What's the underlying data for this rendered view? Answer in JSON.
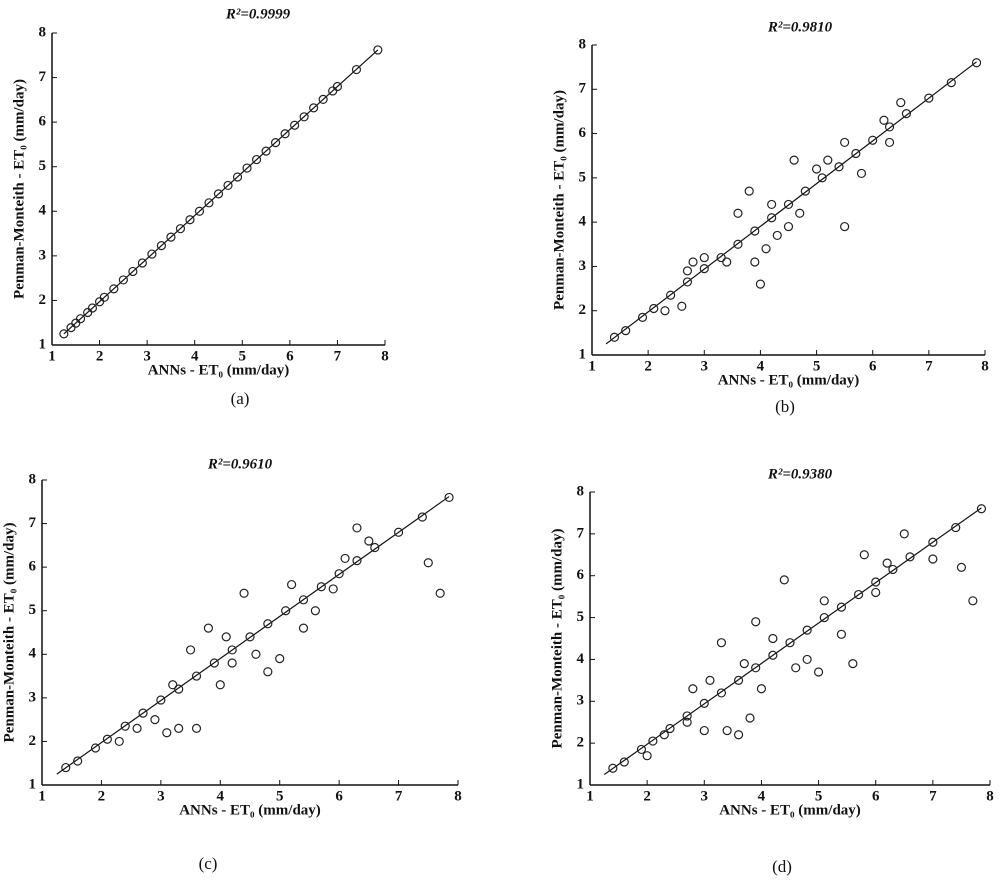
{
  "chart_data": [
    {
      "type": "scatter",
      "title": "R²=0.9999",
      "xlabel": "ANNs - ET₀ (mm/day)",
      "ylabel": "Penman-Monteith - ET₀ (mm/day)",
      "panel_label": "(a)",
      "x": [
        1.25,
        1.4,
        1.5,
        1.6,
        1.75,
        1.85,
        2.0,
        2.1,
        2.3,
        2.5,
        2.7,
        2.9,
        3.1,
        3.3,
        3.5,
        3.7,
        3.9,
        4.1,
        4.3,
        4.5,
        4.7,
        4.9,
        5.1,
        5.3,
        5.5,
        5.7,
        5.9,
        6.1,
        6.3,
        6.5,
        6.7,
        6.9,
        7.0,
        7.4,
        7.85
      ],
      "values": [
        1.25,
        1.39,
        1.49,
        1.59,
        1.73,
        1.83,
        1.97,
        2.07,
        2.26,
        2.46,
        2.65,
        2.84,
        3.04,
        3.23,
        3.42,
        3.61,
        3.81,
        4.0,
        4.19,
        4.39,
        4.58,
        4.77,
        4.97,
        5.16,
        5.35,
        5.54,
        5.74,
        5.93,
        6.12,
        6.32,
        6.51,
        6.7,
        6.8,
        7.18,
        7.62
      ],
      "fit_line": {
        "x": [
          1.25,
          7.85
        ],
        "values": [
          1.25,
          7.62
        ]
      },
      "xlim": [
        1,
        8
      ],
      "ylim": [
        1,
        8
      ],
      "xticks": [
        1,
        2,
        3,
        4,
        5,
        6,
        7,
        8
      ],
      "yticks": [
        1,
        2,
        3,
        4,
        5,
        6,
        7,
        8
      ],
      "color": "#222"
    },
    {
      "type": "scatter",
      "title": "R²=0.9810",
      "xlabel": "ANNs - ET₀ (mm/day)",
      "ylabel": "Penman-Monteith - ET₀ (mm/day)",
      "panel_label": "(b)",
      "x": [
        1.4,
        1.6,
        1.9,
        2.1,
        2.4,
        2.7,
        3.0,
        3.3,
        3.6,
        3.9,
        4.2,
        4.5,
        4.8,
        5.1,
        5.4,
        5.7,
        6.0,
        6.3,
        6.6,
        7.0,
        7.4,
        7.85,
        2.3,
        2.6,
        2.7,
        2.8,
        3.0,
        3.6,
        3.8,
        3.9,
        4.0,
        4.2,
        4.3,
        4.6,
        4.5,
        4.7,
        5.0,
        5.2,
        5.5,
        5.5,
        6.2,
        6.3,
        6.5,
        4.1,
        3.4,
        5.8
      ],
      "values": [
        1.4,
        1.55,
        1.85,
        2.05,
        2.35,
        2.65,
        2.95,
        3.2,
        3.5,
        3.8,
        4.1,
        4.4,
        4.7,
        5.0,
        5.25,
        5.55,
        5.85,
        6.15,
        6.45,
        6.8,
        7.15,
        7.6,
        2.0,
        2.1,
        2.9,
        3.1,
        3.2,
        4.2,
        4.7,
        3.1,
        2.6,
        4.4,
        3.7,
        5.4,
        3.9,
        4.2,
        5.2,
        5.4,
        3.9,
        5.8,
        6.3,
        5.8,
        6.7,
        3.4,
        3.1,
        5.1
      ],
      "fit_line": {
        "x": [
          1.25,
          7.85
        ],
        "values": [
          1.25,
          7.62
        ]
      },
      "xlim": [
        1,
        8
      ],
      "ylim": [
        1,
        8
      ],
      "xticks": [
        1,
        2,
        3,
        4,
        5,
        6,
        7,
        8
      ],
      "yticks": [
        1,
        2,
        3,
        4,
        5,
        6,
        7,
        8
      ],
      "color": "#222"
    },
    {
      "type": "scatter",
      "title": "R²=0.9610",
      "xlabel": "ANNs - ET₀ (mm/day)",
      "ylabel": "Penman-Monteith - ET₀ (mm/day)",
      "panel_label": "(c)",
      "x": [
        1.4,
        1.6,
        1.9,
        2.1,
        2.4,
        2.7,
        3.0,
        3.3,
        3.6,
        3.9,
        4.2,
        4.5,
        4.8,
        5.1,
        5.4,
        5.7,
        6.0,
        6.3,
        6.6,
        7.0,
        7.4,
        7.85,
        2.3,
        2.6,
        2.9,
        3.1,
        3.3,
        3.6,
        3.5,
        3.8,
        4.0,
        4.2,
        4.4,
        4.6,
        4.8,
        5.0,
        5.2,
        5.4,
        5.6,
        5.9,
        6.1,
        6.3,
        6.5,
        7.5,
        7.7,
        3.2,
        4.1
      ],
      "values": [
        1.4,
        1.55,
        1.85,
        2.05,
        2.35,
        2.65,
        2.95,
        3.2,
        3.5,
        3.8,
        4.1,
        4.4,
        4.7,
        5.0,
        5.25,
        5.55,
        5.85,
        6.15,
        6.45,
        6.8,
        7.15,
        7.6,
        2.0,
        2.3,
        2.5,
        2.2,
        2.3,
        2.3,
        4.1,
        4.6,
        3.3,
        3.8,
        5.4,
        4.0,
        3.6,
        3.9,
        5.6,
        4.6,
        5.0,
        5.5,
        6.2,
        6.9,
        6.6,
        6.1,
        5.4,
        3.3,
        4.4
      ],
      "fit_line": {
        "x": [
          1.25,
          7.85
        ],
        "values": [
          1.25,
          7.62
        ]
      },
      "xlim": [
        1,
        8
      ],
      "ylim": [
        1,
        8
      ],
      "xticks": [
        1,
        2,
        3,
        4,
        5,
        6,
        7,
        8
      ],
      "yticks": [
        1,
        2,
        3,
        4,
        5,
        6,
        7,
        8
      ],
      "color": "#222"
    },
    {
      "type": "scatter",
      "title": "R²=0.9380",
      "xlabel": "ANNs - ET₀ (mm/day)",
      "ylabel": "Penman-Monteith - ET₀ (mm/day)",
      "panel_label": "(d)",
      "x": [
        1.4,
        1.6,
        1.9,
        2.1,
        2.4,
        2.7,
        3.0,
        3.3,
        3.6,
        3.9,
        4.2,
        4.5,
        4.8,
        5.1,
        5.4,
        5.7,
        6.0,
        6.3,
        6.6,
        7.0,
        7.4,
        7.85,
        2.0,
        2.3,
        2.7,
        3.0,
        3.1,
        3.3,
        3.4,
        3.6,
        3.8,
        3.9,
        4.0,
        4.2,
        4.4,
        4.6,
        4.8,
        5.0,
        5.1,
        5.4,
        5.6,
        5.8,
        6.0,
        6.2,
        6.5,
        7.0,
        7.5,
        7.7,
        2.8,
        3.7
      ],
      "values": [
        1.4,
        1.55,
        1.85,
        2.05,
        2.35,
        2.65,
        2.95,
        3.2,
        3.5,
        3.8,
        4.1,
        4.4,
        4.7,
        5.0,
        5.25,
        5.55,
        5.85,
        6.15,
        6.45,
        6.8,
        7.15,
        7.6,
        1.7,
        2.2,
        2.5,
        2.3,
        3.5,
        4.4,
        2.3,
        2.2,
        2.6,
        4.9,
        3.3,
        4.5,
        5.9,
        3.8,
        4.0,
        3.7,
        5.4,
        4.6,
        3.9,
        6.5,
        5.6,
        6.3,
        7.0,
        6.4,
        6.2,
        5.4,
        3.3,
        3.9
      ],
      "fit_line": {
        "x": [
          1.25,
          7.85
        ],
        "values": [
          1.25,
          7.62
        ]
      },
      "xlim": [
        1,
        8
      ],
      "ylim": [
        1,
        8
      ],
      "xticks": [
        1,
        2,
        3,
        4,
        5,
        6,
        7,
        8
      ],
      "yticks": [
        1,
        2,
        3,
        4,
        5,
        6,
        7,
        8
      ],
      "color": "#222"
    }
  ]
}
